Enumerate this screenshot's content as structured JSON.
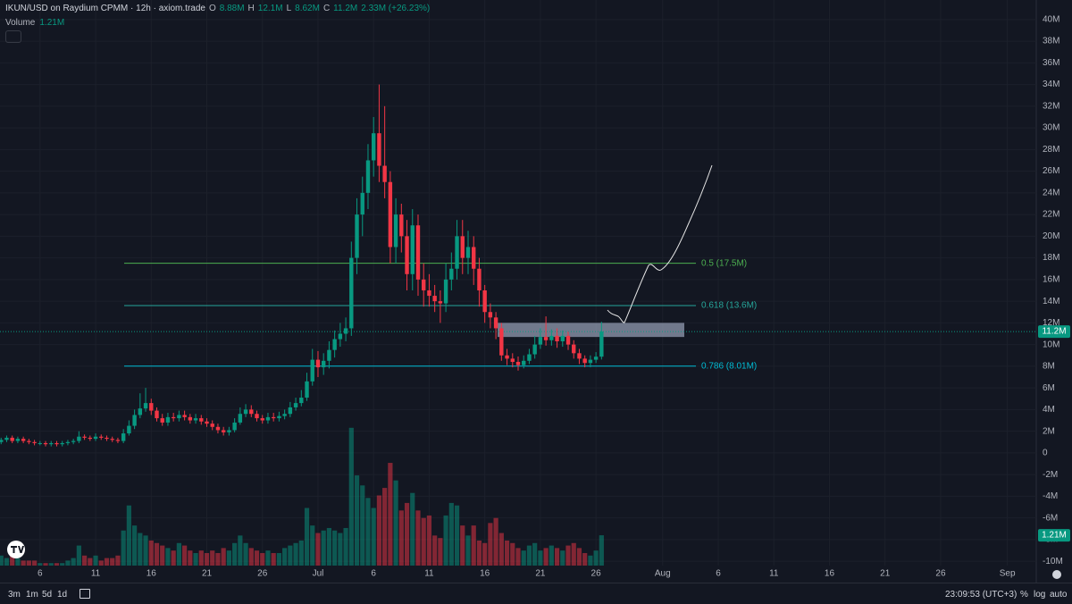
{
  "chart_data": {
    "type": "candlestick",
    "title": "IKUN/USD on Raydium CPMM · 12h · axiom.trade",
    "ohlc_header": [
      {
        "label": "O",
        "value": "8.88M"
      },
      {
        "label": "H",
        "value": "12.1M"
      },
      {
        "label": "L",
        "value": "8.62M"
      },
      {
        "label": "C",
        "value": "11.2M"
      }
    ],
    "change": "2.33M (+26.23%)",
    "volume_title": "Volume",
    "volume_label": "1.21M",
    "up_color": "#089981",
    "down_color": "#f23645",
    "grid": true,
    "grid_color": "#1c202b",
    "xlim": [
      0.8,
      187.2
    ],
    "xticks": [
      {
        "value": 8,
        "label": "6"
      },
      {
        "value": 18,
        "label": "11"
      },
      {
        "value": 28,
        "label": "16"
      },
      {
        "value": 38,
        "label": "21"
      },
      {
        "value": 48,
        "label": "26"
      },
      {
        "value": 58,
        "label": "Jul"
      },
      {
        "value": 68,
        "label": "6"
      },
      {
        "value": 78,
        "label": "11"
      },
      {
        "value": 88,
        "label": "16"
      },
      {
        "value": 98,
        "label": "21"
      },
      {
        "value": 108,
        "label": "26"
      },
      {
        "value": 120,
        "label": "Aug"
      },
      {
        "value": 130,
        "label": "6"
      },
      {
        "value": 140,
        "label": "11"
      },
      {
        "value": 150,
        "label": "16"
      },
      {
        "value": 160,
        "label": "21"
      },
      {
        "value": 170,
        "label": "26"
      },
      {
        "value": 182,
        "label": "Sep"
      }
    ],
    "ylim": [
      -10.4,
      41.8
    ],
    "yticks": [
      {
        "value": 40,
        "label": "40M"
      },
      {
        "value": 38,
        "label": "38M"
      },
      {
        "value": 36,
        "label": "36M"
      },
      {
        "value": 34,
        "label": "34M"
      },
      {
        "value": 32,
        "label": "32M"
      },
      {
        "value": 30,
        "label": "30M"
      },
      {
        "value": 28,
        "label": "28M"
      },
      {
        "value": 26,
        "label": "26M"
      },
      {
        "value": 24,
        "label": "24M"
      },
      {
        "value": 22,
        "label": "22M"
      },
      {
        "value": 20,
        "label": "20M"
      },
      {
        "value": 18,
        "label": "18M"
      },
      {
        "value": 16,
        "label": "16M"
      },
      {
        "value": 14,
        "label": "14M"
      },
      {
        "value": 12,
        "label": "12M"
      },
      {
        "value": 10,
        "label": "10M"
      },
      {
        "value": 8,
        "label": "8M"
      },
      {
        "value": 6,
        "label": "6M"
      },
      {
        "value": 4,
        "label": "4M"
      },
      {
        "value": 2,
        "label": "2M"
      },
      0,
      {
        "value": -2,
        "label": "-2M"
      },
      {
        "value": -4,
        "label": "-4M"
      },
      {
        "value": -6,
        "label": "-6M"
      },
      {
        "value": -8,
        "label": "-8M"
      },
      {
        "value": -10,
        "label": "-10M"
      }
    ],
    "x": [
      1,
      2,
      3,
      4,
      5,
      6,
      7,
      8,
      9,
      10,
      11,
      12,
      13,
      14,
      15,
      16,
      17,
      18,
      19,
      20,
      21,
      22,
      23,
      24,
      25,
      26,
      27,
      28,
      29,
      30,
      31,
      32,
      33,
      34,
      35,
      36,
      37,
      38,
      39,
      40,
      41,
      42,
      43,
      44,
      45,
      46,
      47,
      48,
      49,
      50,
      51,
      52,
      53,
      54,
      55,
      56,
      57,
      58,
      59,
      60,
      61,
      62,
      63,
      64,
      65,
      66,
      67,
      68,
      69,
      70,
      71,
      72,
      73,
      74,
      75,
      76,
      77,
      78,
      79,
      80,
      81,
      82,
      83,
      84,
      85,
      86,
      87,
      88,
      89,
      90,
      91,
      92,
      93,
      94,
      95,
      96,
      97,
      98,
      99,
      100,
      101,
      102,
      103,
      104,
      105,
      106,
      107,
      108,
      109
    ],
    "open": [
      1.0,
      1.2,
      1.4,
      1.1,
      1.3,
      1.1,
      1.0,
      0.9,
      0.9,
      0.8,
      0.9,
      0.8,
      0.9,
      1.0,
      1.1,
      1.5,
      1.4,
      1.3,
      1.5,
      1.4,
      1.3,
      1.2,
      1.1,
      1.8,
      2.5,
      3.5,
      4.1,
      4.6,
      3.9,
      3.2,
      2.8,
      3.3,
      3.2,
      3.5,
      3.3,
      3.0,
      3.2,
      2.9,
      2.7,
      2.4,
      2.1,
      1.9,
      2.1,
      2.8,
      3.6,
      4.0,
      3.6,
      3.2,
      3.0,
      3.3,
      3.2,
      3.4,
      3.6,
      4.2,
      4.6,
      5.1,
      6.6,
      8.6,
      7.9,
      8.5,
      9.5,
      10.5,
      11.0,
      11.5,
      18,
      22,
      24,
      27,
      29.5,
      26.5,
      25,
      19,
      22,
      20,
      16.5,
      21,
      16,
      15,
      14.5,
      14,
      13.8,
      16,
      17,
      20,
      18,
      19,
      17,
      15,
      13,
      12.5,
      11.5,
      9,
      8.7,
      8.4,
      8.1,
      8.5,
      9.1,
      10,
      10.7,
      10.4,
      10.8,
      10.3,
      10.8,
      10.0,
      9.2,
      8.7,
      8.3,
      8.6,
      8.88
    ],
    "high": [
      1.4,
      1.6,
      1.6,
      1.5,
      1.5,
      1.3,
      1.2,
      1.1,
      1.1,
      1.1,
      1.1,
      1.1,
      1.2,
      1.3,
      2.0,
      1.7,
      1.6,
      1.8,
      1.7,
      1.6,
      1.5,
      1.4,
      2.2,
      3.0,
      4.0,
      5.5,
      6.0,
      5.0,
      4.2,
      3.6,
      3.7,
      3.7,
      3.9,
      3.9,
      3.6,
      3.6,
      3.5,
      3.2,
      3.0,
      2.7,
      2.4,
      2.4,
      3.2,
      4.2,
      4.5,
      4.4,
      3.9,
      3.5,
      3.7,
      3.7,
      3.8,
      4.0,
      4.7,
      5.1,
      5.8,
      7.4,
      9.6,
      9.4,
      9.2,
      10.3,
      11.3,
      12.0,
      12.5,
      19.5,
      23.5,
      25.5,
      28.5,
      31,
      34,
      32,
      26,
      23.5,
      23,
      21.5,
      22.5,
      22,
      17.5,
      16.5,
      15.5,
      15,
      17.5,
      18.5,
      21.5,
      21.5,
      20.5,
      20,
      18,
      15.5,
      13.8,
      13,
      12,
      9.6,
      9.2,
      8.9,
      9.0,
      9.6,
      10.8,
      11.5,
      12.6,
      11.4,
      11.5,
      11.3,
      11.2,
      10.4,
      9.6,
      9.0,
      9.0,
      9.3,
      12.1
    ],
    "low": [
      0.8,
      1.0,
      0.9,
      0.9,
      0.9,
      0.8,
      0.7,
      0.7,
      0.6,
      0.6,
      0.6,
      0.6,
      0.7,
      0.8,
      0.9,
      1.2,
      1.1,
      1.1,
      1.2,
      1.1,
      1.0,
      0.9,
      0.9,
      1.6,
      2.2,
      3.2,
      3.8,
      3.5,
      2.9,
      2.5,
      2.5,
      2.9,
      2.9,
      3.0,
      2.7,
      2.7,
      2.6,
      2.4,
      2.1,
      1.8,
      1.6,
      1.6,
      1.9,
      2.6,
      3.3,
      3.3,
      2.9,
      2.7,
      2.7,
      2.9,
      2.9,
      3.1,
      3.3,
      3.9,
      4.3,
      4.8,
      6.2,
      7.0,
      7.2,
      7.8,
      8.8,
      9.8,
      10.3,
      10.8,
      16.5,
      20,
      22.5,
      25.5,
      25,
      23.5,
      17.5,
      17.5,
      18.5,
      15,
      15,
      14.5,
      13.5,
      13.5,
      13,
      12,
      13,
      15,
      16,
      16.5,
      16.5,
      15.5,
      13.5,
      12,
      11.5,
      10.5,
      8.5,
      8.1,
      7.9,
      7.6,
      7.8,
      8.2,
      8.7,
      9.6,
      9.9,
      9.9,
      9.7,
      9.8,
      9.5,
      8.7,
      8.2,
      7.9,
      7.9,
      8.3,
      8.62
    ],
    "close": [
      1.2,
      1.4,
      1.1,
      1.3,
      1.1,
      1.0,
      0.9,
      0.9,
      0.8,
      0.9,
      0.8,
      0.9,
      1.0,
      1.1,
      1.5,
      1.4,
      1.3,
      1.5,
      1.4,
      1.3,
      1.2,
      1.1,
      1.8,
      2.5,
      3.5,
      4.1,
      4.6,
      3.9,
      3.2,
      2.8,
      3.3,
      3.2,
      3.5,
      3.3,
      3.0,
      3.2,
      2.9,
      2.7,
      2.4,
      2.1,
      1.9,
      2.1,
      2.8,
      3.6,
      4.0,
      3.6,
      3.2,
      3.0,
      3.3,
      3.2,
      3.4,
      3.6,
      4.2,
      4.6,
      5.1,
      6.6,
      8.6,
      7.9,
      8.5,
      9.5,
      10.5,
      11.0,
      11.5,
      18,
      22,
      24,
      27,
      29.5,
      26.5,
      25,
      19,
      22,
      20,
      16.5,
      21,
      16,
      15,
      14.5,
      14,
      13.8,
      16,
      17,
      20,
      18,
      19,
      17,
      15,
      13,
      12.5,
      11.5,
      9,
      8.7,
      8.4,
      8.1,
      8.5,
      9.1,
      10,
      10.7,
      10.4,
      10.8,
      10.3,
      10.8,
      10.0,
      9.2,
      8.7,
      8.3,
      8.6,
      8.88,
      11.2
    ],
    "volume_ylim": [
      0,
      5.6
    ],
    "volume": [
      0.4,
      0.3,
      0.5,
      0.3,
      0.2,
      0.2,
      0.2,
      0.1,
      0.1,
      0.1,
      0.1,
      0.1,
      0.2,
      0.3,
      0.8,
      0.4,
      0.3,
      0.4,
      0.2,
      0.3,
      0.3,
      0.4,
      1.4,
      2.4,
      1.6,
      1.3,
      1.2,
      1.0,
      0.9,
      0.8,
      0.7,
      0.6,
      0.9,
      0.8,
      0.6,
      0.5,
      0.6,
      0.5,
      0.6,
      0.5,
      0.7,
      0.6,
      0.9,
      1.2,
      0.9,
      0.7,
      0.6,
      0.5,
      0.6,
      0.5,
      0.5,
      0.7,
      0.8,
      0.9,
      1.0,
      2.3,
      1.6,
      1.3,
      1.4,
      1.5,
      1.4,
      1.3,
      1.5,
      5.5,
      3.6,
      3.2,
      2.7,
      2.3,
      2.8,
      3.1,
      4.1,
      3.4,
      2.2,
      2.5,
      2.9,
      2.2,
      1.9,
      2.0,
      1.2,
      1.1,
      2.0,
      2.5,
      2.4,
      1.6,
      1.2,
      1.6,
      1.0,
      0.9,
      1.7,
      1.9,
      1.3,
      1.0,
      0.9,
      0.7,
      0.6,
      0.8,
      0.9,
      0.6,
      0.7,
      0.8,
      0.7,
      0.6,
      0.8,
      0.9,
      0.7,
      0.5,
      0.4,
      0.6,
      1.21
    ],
    "fib_levels": [
      {
        "label": "0.5 (17.5M)",
        "value": 17.5,
        "color": "#4caf50"
      },
      {
        "label": "0.618 (13.6M)",
        "value": 13.6,
        "color": "#26a69a"
      },
      {
        "label": "0.786 (8.01M)",
        "value": 8.01,
        "color": "#00bcd4"
      }
    ],
    "zone": {
      "low": 10.7,
      "high": 12.0,
      "color": "rgba(150,160,182,0.72)"
    },
    "last_price": {
      "value": 11.2,
      "label": "11.2M"
    }
  },
  "toolbar": {
    "intervals": [
      "3m",
      "1m",
      "5d",
      "1d"
    ],
    "clock": "23:09:53 (UTC+3)",
    "scale_options": [
      "%",
      "log",
      "auto"
    ]
  }
}
